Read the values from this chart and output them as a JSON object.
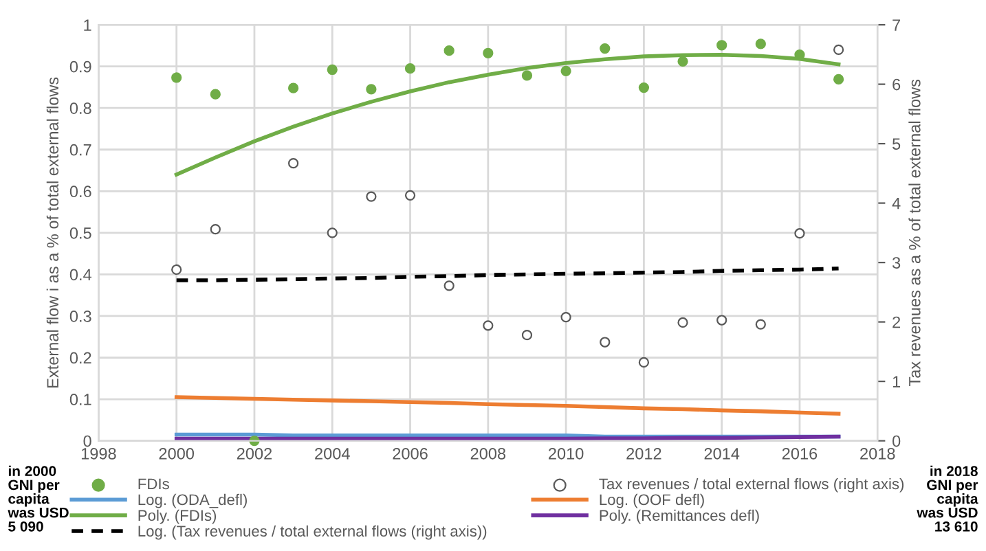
{
  "chart_data": {
    "type": "scatter",
    "ylabel": "External flow i as a % of total external flows",
    "y2label": "Tax revenues as a % of total external flows",
    "xlim": [
      1998,
      2018
    ],
    "xticks": [
      1998,
      2000,
      2002,
      2004,
      2006,
      2008,
      2010,
      2012,
      2014,
      2016,
      2018
    ],
    "ylim": [
      0,
      1
    ],
    "yticks": [
      0,
      0.1,
      0.2,
      0.3,
      0.4,
      0.5,
      0.6,
      0.7,
      0.8,
      0.9,
      1
    ],
    "y2lim": [
      0,
      7
    ],
    "y2ticks": [
      0,
      1,
      2,
      3,
      4,
      5,
      6,
      7
    ],
    "grid": true,
    "legend": "bottom",
    "annotations": [
      "in 2000\nGNI per\ncapita\nwas USD\n5 090",
      "in 2018\nGNI per\ncapita\nwas USD\n13 610"
    ],
    "x": [
      2000,
      2001,
      2002,
      2003,
      2004,
      2005,
      2006,
      2007,
      2008,
      2009,
      2010,
      2011,
      2012,
      2013,
      2014,
      2015,
      2016,
      2017
    ],
    "series": [
      {
        "name": "FDIs",
        "marker": "circle",
        "color": "#70ad47",
        "values": [
          0.873,
          0.833,
          0,
          0.848,
          0.892,
          0.845,
          0.895,
          0.938,
          0.932,
          0.878,
          0.889,
          0.943,
          0.849,
          0.912,
          0.951,
          0.954,
          0.928,
          0.869
        ]
      },
      {
        "name": "Tax revenues / total external flows (right axis)",
        "marker": "circle",
        "axis": "y2",
        "color": "#595959",
        "values": [
          2.88,
          3.56,
          null,
          4.67,
          3.5,
          4.11,
          4.13,
          2.61,
          1.94,
          1.78,
          2.08,
          1.66,
          1.32,
          1.99,
          2.03,
          1.96,
          3.49,
          6.58
        ]
      },
      {
        "name": "Log. (ODA_defl)",
        "type": "line",
        "line_style": "solid",
        "color": "#5b9bd5",
        "values": [
          0.015,
          0.015,
          0.015,
          0.013,
          0.013,
          0.013,
          0.013,
          0.013,
          0.013,
          0.013,
          0.013,
          0.01,
          0.01,
          0.01,
          0.01,
          0.01,
          0.01,
          0.01
        ]
      },
      {
        "name": "Log. (OOF defl)",
        "type": "line",
        "line_style": "solid",
        "color": "#ed7d31",
        "values": [
          0.105,
          0.103,
          0.101,
          0.099,
          0.097,
          0.095,
          0.093,
          0.091,
          0.088,
          0.086,
          0.084,
          0.081,
          0.078,
          0.076,
          0.073,
          0.071,
          0.068,
          0.065
        ]
      },
      {
        "name": "Poly. (FDIs)",
        "type": "line",
        "line_style": "solid",
        "color": "#70ad47",
        "values": [
          0.64,
          0.681,
          0.72,
          0.755,
          0.787,
          0.815,
          0.84,
          0.862,
          0.88,
          0.896,
          0.908,
          0.917,
          0.924,
          0.927,
          0.928,
          0.925,
          0.918,
          0.905
        ]
      },
      {
        "name": "Poly. (Remittances defl)",
        "type": "line",
        "line_style": "solid",
        "color": "#7030a0",
        "values": [
          0.005,
          0.005,
          0.005,
          0.005,
          0.005,
          0.005,
          0.005,
          0.005,
          0.005,
          0.005,
          0.005,
          0.006,
          0.006,
          0.007,
          0.007,
          0.008,
          0.009,
          0.01
        ]
      },
      {
        "name": "Log. (Tax revenues / total external flows (right axis))",
        "type": "line",
        "line_style": "dashed",
        "axis": "y2",
        "color": "#000000",
        "values": [
          2.7,
          2.7,
          2.71,
          2.72,
          2.73,
          2.74,
          2.76,
          2.77,
          2.79,
          2.8,
          2.81,
          2.82,
          2.83,
          2.84,
          2.86,
          2.87,
          2.88,
          2.9
        ]
      }
    ]
  }
}
